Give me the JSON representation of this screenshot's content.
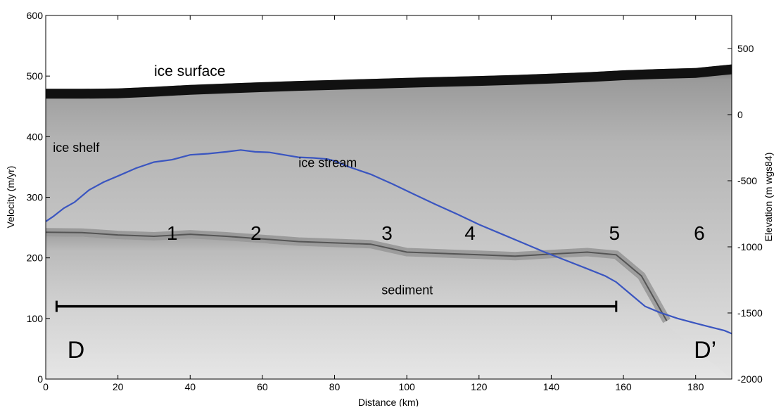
{
  "chart_data": {
    "type": "line",
    "title": "",
    "xlabel": "Distance (km)",
    "ylabel_left": "Velocity (m/yr)",
    "ylabel_right": "Elevation (m wgs84)",
    "xlim": [
      0,
      190
    ],
    "ylim_left": [
      0,
      600
    ],
    "ylim_right": [
      -2000,
      750
    ],
    "x_ticks": [
      0,
      20,
      40,
      60,
      80,
      100,
      120,
      140,
      160,
      180
    ],
    "y_ticks_left": [
      0,
      100,
      200,
      300,
      400,
      500,
      600
    ],
    "y_ticks_right": [
      500,
      0,
      -500,
      -1000,
      -1500,
      -2000
    ],
    "grid": false,
    "legend": "none",
    "colors": {
      "velocity_line": "#3a55c0",
      "scale_bar": "#000000",
      "ice_surface": "#111111",
      "background_radar": "#c8c8c8"
    },
    "series": [
      {
        "x": [
          0,
          2,
          5,
          8,
          12,
          16,
          20,
          25,
          30,
          35,
          40,
          45,
          50,
          54,
          58,
          62,
          66,
          70,
          74,
          78,
          80,
          84,
          90,
          96,
          102,
          108,
          114,
          120,
          126,
          132,
          138,
          144,
          150,
          155,
          158,
          162,
          166,
          170,
          175,
          180,
          184,
          188,
          190
        ],
        "values": [
          260,
          268,
          282,
          292,
          312,
          325,
          335,
          348,
          358,
          362,
          370,
          372,
          375,
          378,
          375,
          374,
          370,
          366,
          365,
          363,
          360,
          350,
          338,
          322,
          305,
          288,
          272,
          255,
          240,
          225,
          210,
          196,
          182,
          170,
          160,
          140,
          120,
          110,
          100,
          92,
          86,
          80,
          75
        ]
      }
    ],
    "ice_surface_elevation": {
      "x": [
        0,
        10,
        20,
        30,
        40,
        50,
        60,
        70,
        80,
        90,
        100,
        110,
        120,
        130,
        140,
        150,
        160,
        170,
        180,
        190
      ],
      "values": [
        195,
        195,
        198,
        210,
        225,
        235,
        245,
        255,
        262,
        270,
        278,
        285,
        292,
        300,
        310,
        320,
        335,
        345,
        352,
        380
      ]
    },
    "bed_elevation": {
      "x": [
        0,
        10,
        20,
        30,
        40,
        50,
        60,
        70,
        80,
        90,
        100,
        110,
        120,
        130,
        140,
        150,
        158,
        165,
        172
      ],
      "values": [
        -890,
        -892,
        -910,
        -920,
        -905,
        -920,
        -940,
        -960,
        -970,
        -980,
        -1040,
        -1050,
        -1060,
        -1070,
        -1055,
        -1040,
        -1060,
        -1220,
        -1560
      ]
    },
    "scale_bar": {
      "from": 3,
      "to": 158,
      "at": 120
    },
    "annotations": [
      {
        "text": "ice surface",
        "x": 30,
        "y": 500
      },
      {
        "text": "ice shelf",
        "x": 2,
        "y": 375
      },
      {
        "text": "ice stream",
        "x": 70,
        "y": 350
      },
      {
        "text": "sediment",
        "x": 93,
        "y": 140
      },
      {
        "text": "1",
        "x": 33.5,
        "y": 230
      },
      {
        "text": "2",
        "x": 56.7,
        "y": 230
      },
      {
        "text": "3",
        "x": 93,
        "y": 230
      },
      {
        "text": "4",
        "x": 116,
        "y": 230
      },
      {
        "text": "5",
        "x": 156,
        "y": 230
      },
      {
        "text": "6",
        "x": 179.5,
        "y": 230
      },
      {
        "text": "D",
        "x": 6,
        "y": 35
      },
      {
        "text": "D’",
        "x": 179.5,
        "y": 35
      }
    ]
  }
}
